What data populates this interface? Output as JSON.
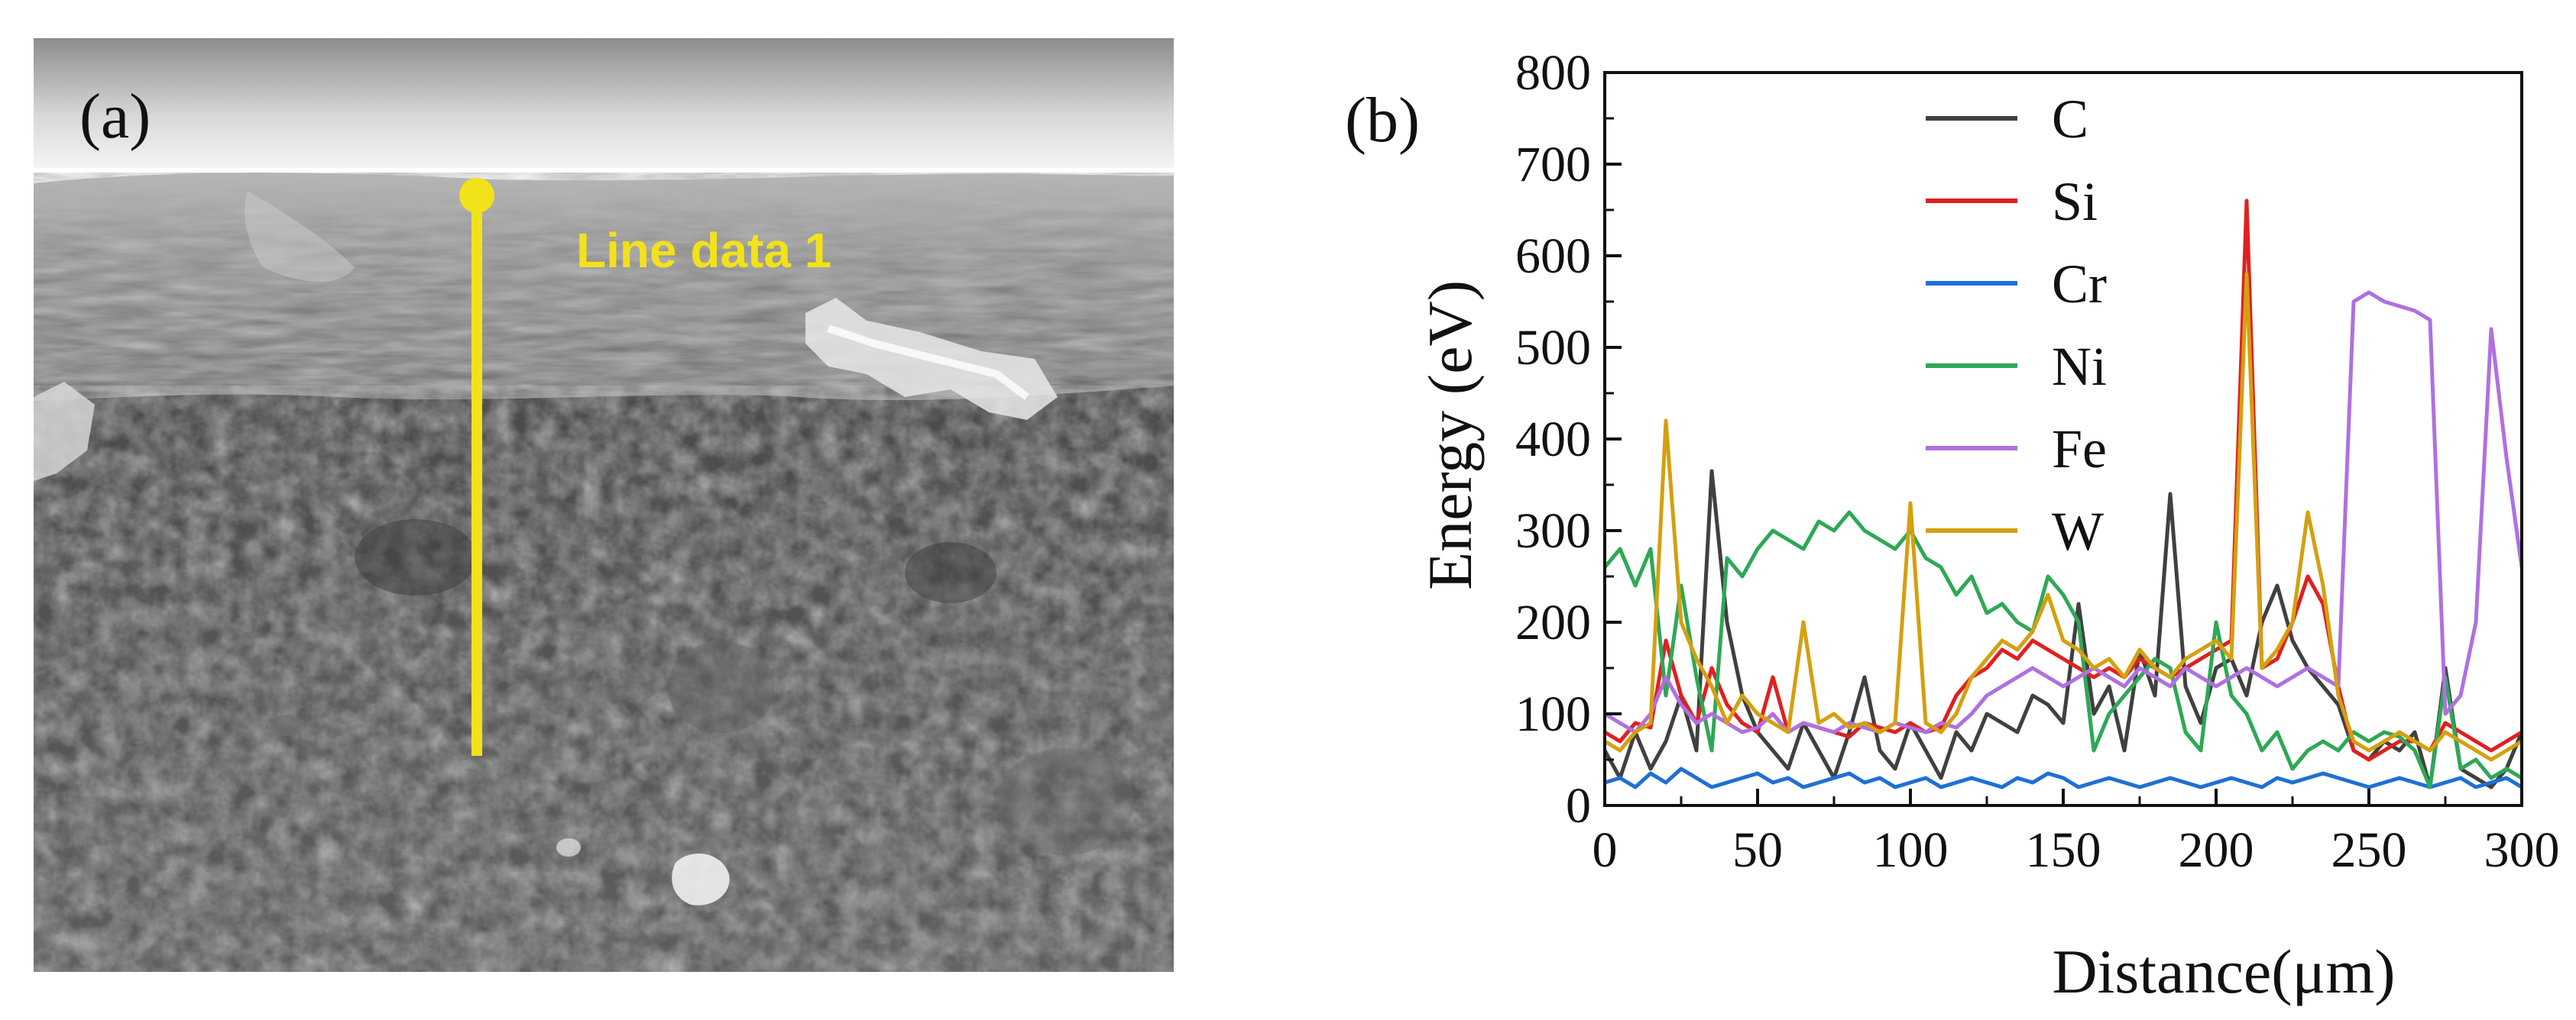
{
  "panel_a": {
    "label": "(a)",
    "line_label": "Line data 1",
    "line_color": "#f2e21a"
  },
  "chart_data": {
    "type": "line",
    "panel_label": "(b)",
    "title": "",
    "xlabel": "Distance(μm)",
    "ylabel": "Energy (eV)",
    "xlim": [
      0,
      300
    ],
    "ylim": [
      0,
      800
    ],
    "xticks": [
      0,
      50,
      100,
      150,
      200,
      250,
      300
    ],
    "yticks": [
      0,
      100,
      200,
      300,
      400,
      500,
      600,
      700,
      800
    ],
    "grid": false,
    "legend_position": "top-center",
    "x": [
      0,
      5,
      10,
      15,
      20,
      25,
      30,
      35,
      40,
      45,
      50,
      55,
      60,
      65,
      70,
      75,
      80,
      85,
      90,
      95,
      100,
      105,
      110,
      115,
      120,
      125,
      130,
      135,
      140,
      145,
      150,
      155,
      160,
      165,
      170,
      175,
      180,
      185,
      190,
      195,
      200,
      205,
      210,
      215,
      220,
      225,
      230,
      235,
      240,
      245,
      250,
      255,
      260,
      265,
      270,
      275,
      280,
      285,
      290,
      295,
      300
    ],
    "series": [
      {
        "name": "C",
        "color": "#404040",
        "values": [
          60,
          30,
          80,
          40,
          70,
          120,
          60,
          365,
          200,
          120,
          80,
          60,
          40,
          90,
          60,
          30,
          80,
          140,
          60,
          40,
          90,
          60,
          30,
          80,
          60,
          100,
          90,
          80,
          120,
          110,
          90,
          220,
          100,
          130,
          60,
          170,
          120,
          340,
          130,
          90,
          150,
          160,
          120,
          200,
          240,
          180,
          150,
          130,
          110,
          60,
          50,
          70,
          60,
          80,
          20,
          150,
          40,
          30,
          20,
          40,
          80
        ]
      },
      {
        "name": "Si",
        "color": "#e02020",
        "values": [
          80,
          70,
          90,
          85,
          180,
          120,
          90,
          150,
          110,
          90,
          80,
          140,
          80,
          90,
          85,
          80,
          75,
          90,
          85,
          80,
          90,
          80,
          85,
          120,
          140,
          150,
          170,
          160,
          180,
          170,
          160,
          150,
          140,
          150,
          140,
          160,
          150,
          140,
          150,
          160,
          170,
          180,
          660,
          150,
          160,
          200,
          250,
          220,
          130,
          60,
          50,
          60,
          70,
          70,
          60,
          90,
          80,
          70,
          60,
          70,
          80
        ]
      },
      {
        "name": "Cr",
        "color": "#1f6fd6",
        "values": [
          25,
          30,
          20,
          35,
          25,
          40,
          30,
          20,
          25,
          30,
          35,
          25,
          30,
          20,
          25,
          30,
          35,
          25,
          30,
          20,
          25,
          30,
          20,
          25,
          30,
          25,
          20,
          30,
          25,
          35,
          30,
          20,
          25,
          30,
          25,
          20,
          25,
          30,
          25,
          20,
          25,
          30,
          25,
          20,
          30,
          25,
          30,
          35,
          30,
          25,
          20,
          25,
          30,
          25,
          20,
          25,
          30,
          20,
          25,
          30,
          20
        ]
      },
      {
        "name": "Ni",
        "color": "#2ea855",
        "values": [
          260,
          280,
          240,
          280,
          120,
          240,
          140,
          60,
          270,
          250,
          280,
          300,
          290,
          280,
          310,
          300,
          320,
          300,
          290,
          280,
          300,
          270,
          260,
          230,
          250,
          210,
          220,
          200,
          190,
          250,
          230,
          200,
          60,
          100,
          120,
          140,
          160,
          150,
          80,
          60,
          200,
          120,
          100,
          60,
          80,
          40,
          60,
          70,
          60,
          80,
          70,
          80,
          75,
          60,
          20,
          140,
          40,
          50,
          30,
          40,
          30
        ]
      },
      {
        "name": "Fe",
        "color": "#b070e0",
        "values": [
          100,
          90,
          80,
          100,
          140,
          110,
          90,
          100,
          90,
          80,
          85,
          100,
          80,
          90,
          85,
          80,
          90,
          85,
          80,
          90,
          85,
          80,
          90,
          85,
          100,
          120,
          130,
          140,
          150,
          140,
          130,
          140,
          150,
          140,
          130,
          150,
          140,
          130,
          150,
          140,
          130,
          140,
          150,
          140,
          130,
          140,
          150,
          140,
          130,
          550,
          560,
          550,
          545,
          540,
          530,
          100,
          120,
          200,
          520,
          380,
          260
        ]
      },
      {
        "name": "W",
        "color": "#d4a010",
        "values": [
          70,
          60,
          80,
          90,
          420,
          200,
          160,
          130,
          90,
          120,
          100,
          90,
          80,
          200,
          90,
          100,
          85,
          90,
          80,
          90,
          330,
          90,
          80,
          100,
          140,
          160,
          180,
          170,
          190,
          230,
          180,
          170,
          150,
          160,
          140,
          170,
          150,
          140,
          160,
          170,
          180,
          160,
          580,
          150,
          170,
          200,
          320,
          240,
          120,
          70,
          60,
          70,
          80,
          70,
          60,
          80,
          70,
          60,
          50,
          60,
          70
        ]
      }
    ]
  }
}
